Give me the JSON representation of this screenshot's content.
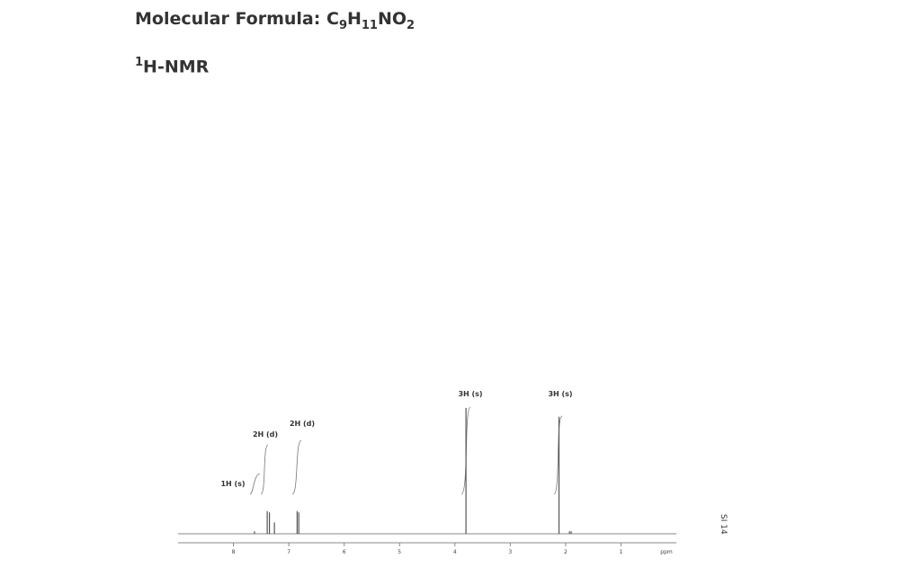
{
  "header": {
    "formula": {
      "label": "Molecular Formula:",
      "parts": [
        "C",
        "9",
        "H",
        "11",
        "NO",
        "2"
      ]
    },
    "nmr": {
      "sup": "1",
      "text": "H-NMR"
    }
  },
  "chart_data": {
    "type": "spectrum",
    "xlabel": "ppm",
    "xlim": [
      9,
      0
    ],
    "xticks": [
      8,
      7,
      6,
      5,
      4,
      3,
      2,
      1
    ],
    "x": [
      7.62,
      7.39,
      7.35,
      7.26,
      6.85,
      6.82,
      3.8,
      2.12,
      1.93,
      1.9
    ],
    "values": [
      0.02,
      0.18,
      0.17,
      0.09,
      0.18,
      0.17,
      1.0,
      0.93,
      0.02,
      0.02
    ],
    "color": "#555555",
    "annotations": [
      "1H (s)",
      "2H (d)",
      "2H (d)",
      "3H (s)",
      "3H (s)"
    ],
    "side_label": "SI 14"
  }
}
